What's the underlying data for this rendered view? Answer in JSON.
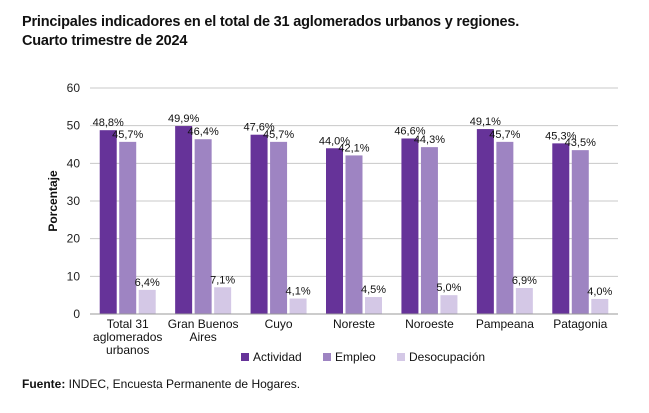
{
  "title_line1": "Principales indicadores en el total de 31 aglomerados urbanos y regiones.",
  "title_line2": "Cuarto trimestre de 2024",
  "source_label": "Fuente:",
  "source_text": " INDEC, Encuesta Permanente de Hogares.",
  "chart_data": {
    "type": "bar",
    "categories": [
      [
        "Total 31",
        "aglomerados",
        "urbanos"
      ],
      [
        "Gran Buenos",
        "Aires"
      ],
      [
        "Cuyo"
      ],
      [
        "Noreste"
      ],
      [
        "Noroeste"
      ],
      [
        "Pampeana"
      ],
      [
        "Patagonia"
      ]
    ],
    "series": [
      {
        "name": "Actividad",
        "color": "#663399",
        "values": [
          48.8,
          49.9,
          47.6,
          44.0,
          46.6,
          49.1,
          45.3
        ],
        "labels": [
          "48,8%",
          "49,9%",
          "47,6%",
          "44,0%",
          "46,6%",
          "49,1%",
          "45,3%"
        ]
      },
      {
        "name": "Empleo",
        "color": "#9e84c2",
        "values": [
          45.7,
          46.4,
          45.7,
          42.1,
          44.3,
          45.7,
          43.5
        ],
        "labels": [
          "45,7%",
          "46,4%",
          "45,7%",
          "42,1%",
          "44,3%",
          "45,7%",
          "43,5%"
        ]
      },
      {
        "name": "Desocupación",
        "color": "#d4c8e6",
        "values": [
          6.4,
          7.1,
          4.1,
          4.5,
          5.0,
          6.9,
          4.0
        ],
        "labels": [
          "6,4%",
          "7,1%",
          "4,1%",
          "4,5%",
          "5,0%",
          "6,9%",
          "4,0%"
        ]
      }
    ],
    "ylabel": "Porcentaje",
    "ylim": [
      0,
      60
    ],
    "yticks": [
      0,
      10,
      20,
      30,
      40,
      50,
      60
    ],
    "grid": true,
    "legend_position": "bottom"
  }
}
